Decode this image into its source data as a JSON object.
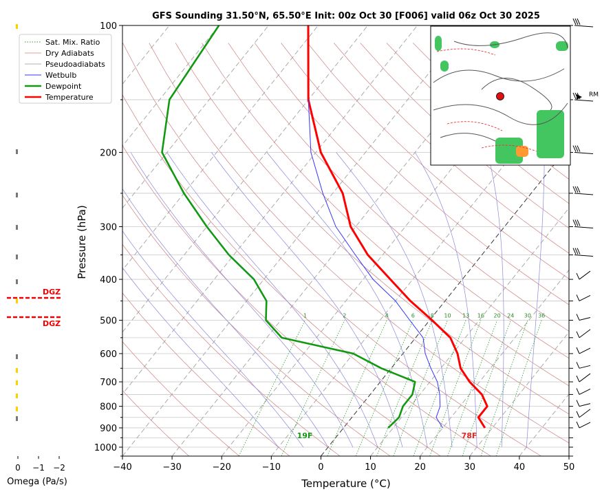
{
  "chart_data": {
    "type": "line",
    "title": "GFS Sounding 31.50°N, 65.50°E Init: 00z Oct 30 [F006] valid 06z Oct 30 2025",
    "xlabel": "Temperature (°C)",
    "ylabel": "Pressure (hPa)",
    "xlim": [
      -40,
      50
    ],
    "ylim": [
      1050,
      100
    ],
    "x_ticks": [
      "−40",
      "−30",
      "−20",
      "−10",
      "0",
      "10",
      "20",
      "30",
      "40",
      "50"
    ],
    "y_ticks": [
      "100",
      "200",
      "300",
      "400",
      "500",
      "600",
      "700",
      "800",
      "900",
      "1000"
    ],
    "y_scale": "log (skew-T)",
    "legend": [
      "Sat. Mix. Ratio",
      "Dry Adiabats",
      "Pseudoadiabats",
      "Wetbulb",
      "Dewpoint",
      "Temperature"
    ],
    "legend_position": "top-left",
    "colors": {
      "temperature": "#ff0000",
      "dewpoint": "#119911",
      "wetbulb": "#3333ff",
      "dgz": "#ee0000"
    },
    "series": [
      {
        "name": "Temperature",
        "p": [
          100,
          150,
          200,
          250,
          300,
          350,
          400,
          450,
          500,
          550,
          600,
          650,
          700,
          750,
          800,
          850,
          900
        ],
        "t": [
          -72,
          -60,
          -49,
          -38,
          -31,
          -23,
          -14.5,
          -7,
          0.5,
          7,
          11,
          14,
          18,
          22.5,
          25.5,
          25.5,
          28.5
        ]
      },
      {
        "name": "Dewpoint",
        "p": [
          100,
          150,
          200,
          250,
          300,
          350,
          400,
          450,
          500,
          550,
          600,
          650,
          700,
          750,
          800,
          850,
          900
        ],
        "t": [
          -90,
          -88,
          -81,
          -70,
          -60,
          -51,
          -42,
          -36,
          -33,
          -27,
          -10,
          -2,
          7,
          8.5,
          8.5,
          9.5,
          9
        ]
      },
      {
        "name": "Wetbulb",
        "p": [
          150,
          200,
          250,
          300,
          350,
          400,
          450,
          500,
          550,
          600,
          650,
          700,
          750,
          800,
          850,
          900
        ],
        "t": [
          -60,
          -51,
          -42,
          -34,
          -25.5,
          -18,
          -10,
          -4,
          1.5,
          4.5,
          8,
          11.5,
          14,
          16,
          17,
          20
        ]
      }
    ],
    "annotations": {
      "surface_temp": "78F",
      "surface_dewpoint": "19F",
      "dgz_label": "DGZ",
      "storm_motion": "RM"
    },
    "mixing_ratio_labels": [
      "1",
      "2",
      "4",
      "6",
      "8",
      "10",
      "13",
      "16",
      "20",
      "24",
      "30",
      "36"
    ],
    "omega": {
      "label": "Omega (Pa/s)",
      "ticks": [
        "0",
        "−1",
        "−2"
      ]
    }
  }
}
